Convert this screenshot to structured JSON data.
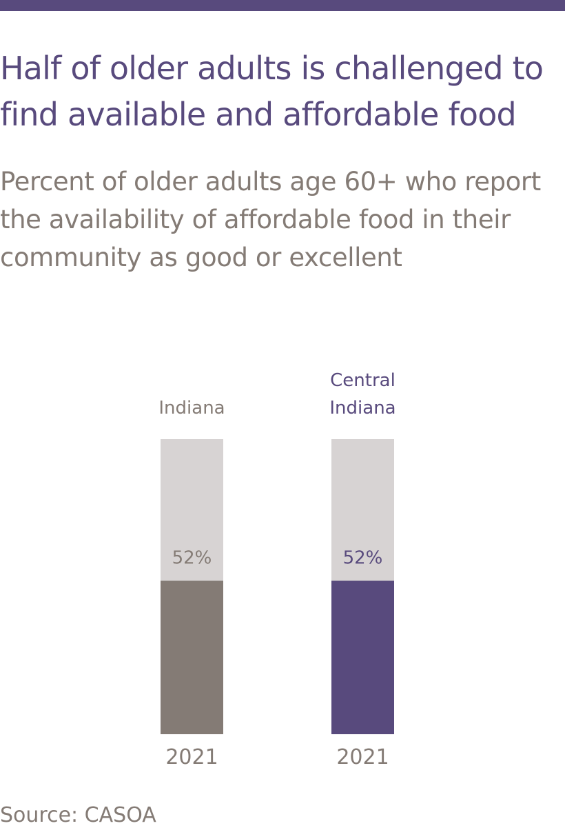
{
  "header": {
    "accent_color": "#584a7d",
    "title": "Half of older adults is challenged to find available and affordable food",
    "subtitle": "Percent of older adults age 60+ who report the availability of affordable food in their community as good or excellent"
  },
  "chart_data": {
    "type": "bar",
    "stacked_to_total": 100,
    "categories": [
      "Indiana",
      "Central Indiana"
    ],
    "category_label_lines": [
      [
        "Indiana"
      ],
      [
        "Central",
        "Indiana"
      ]
    ],
    "x_tick_labels": [
      "2021",
      "2021"
    ],
    "series": [
      {
        "values": [
          52,
          52
        ],
        "value_labels": [
          "52%",
          "52%"
        ]
      }
    ],
    "ylim": [
      0,
      100
    ],
    "grid": false,
    "colors": {
      "bar_fill": [
        "#847b75",
        "#584a7d"
      ],
      "bar_background": "#d7d3d3",
      "category_label": [
        "#847b75",
        "#584a7d"
      ],
      "value_label": [
        "#847b75",
        "#584a7d"
      ],
      "tick_label": "#847b75"
    }
  },
  "footer": {
    "source": "Source: CASOA"
  }
}
